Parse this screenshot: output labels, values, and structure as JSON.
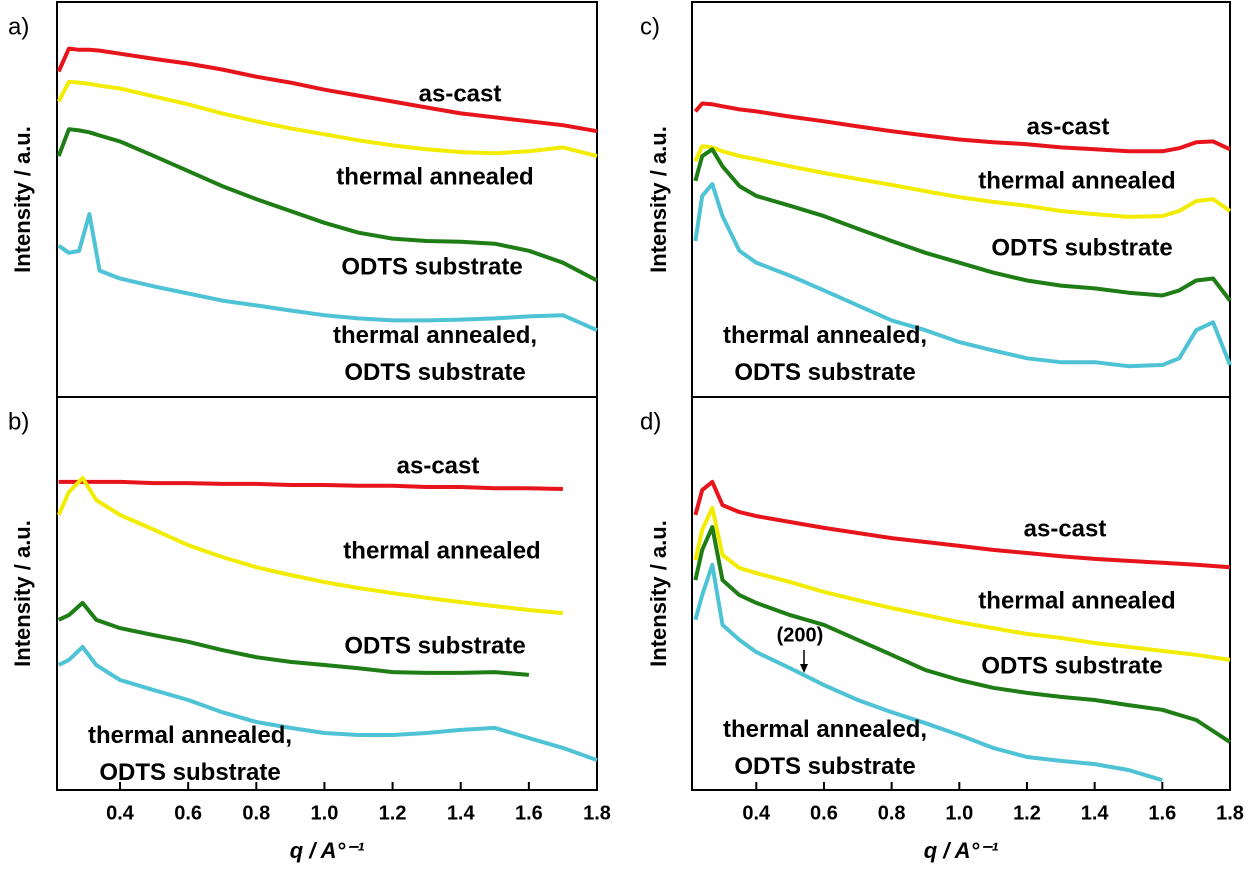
{
  "chart_data": [
    {
      "type": "line",
      "panel_label": "a)",
      "y_label": "Intensity / a.u.",
      "x": [
        0.22,
        0.25,
        0.28,
        0.31,
        0.34,
        0.4,
        0.5,
        0.6,
        0.7,
        0.8,
        0.9,
        1.0,
        1.1,
        1.2,
        1.3,
        1.4,
        1.5,
        1.6,
        1.7,
        1.8
      ],
      "xlim": [
        0.215,
        1.8
      ],
      "ylim": [
        0,
        100
      ],
      "series": [
        {
          "name": "as-cast",
          "color": "#e8141c",
          "values": [
            82.4,
            88.2,
            87.9,
            87.9,
            87.7,
            86.9,
            85.6,
            84.4,
            82.9,
            81.1,
            79.6,
            77.8,
            76.3,
            74.8,
            73.3,
            71.8,
            70.8,
            69.8,
            68.8,
            67.3
          ]
        },
        {
          "name": "thermal annealed",
          "color": "#f2ec00",
          "values": [
            74.8,
            79.8,
            79.6,
            79.3,
            78.8,
            78.1,
            76.1,
            74.1,
            71.8,
            69.8,
            68.0,
            66.5,
            65.0,
            63.7,
            62.7,
            62.0,
            61.7,
            62.2,
            63.2,
            61.0
          ]
        },
        {
          "name": "ODTS substrate",
          "color": "#1e7d14",
          "values": [
            61.0,
            67.8,
            67.5,
            67.0,
            66.2,
            64.7,
            61.0,
            57.2,
            53.4,
            50.1,
            47.1,
            44.1,
            41.6,
            40.1,
            39.5,
            39.3,
            38.8,
            37.0,
            34.0,
            29.5
          ]
        },
        {
          "name": "thermal annealed, ODTS substrate",
          "color": "#4ec3d6",
          "values": [
            38.3,
            36.5,
            37.0,
            46.3,
            32.0,
            30.0,
            28.0,
            26.2,
            24.4,
            23.2,
            21.9,
            20.7,
            19.9,
            19.4,
            19.4,
            19.6,
            19.9,
            20.4,
            20.7,
            16.9
          ]
        }
      ]
    },
    {
      "type": "line",
      "panel_label": "b)",
      "y_label": "Intensity / a.u.",
      "x_label": "q / A°⁻¹",
      "x": [
        0.22,
        0.25,
        0.29,
        0.33,
        0.4,
        0.5,
        0.6,
        0.7,
        0.8,
        0.9,
        1.0,
        1.1,
        1.2,
        1.3,
        1.4,
        1.5,
        1.6,
        1.7,
        1.8
      ],
      "xlim": [
        0.215,
        1.8
      ],
      "ylim": [
        0,
        100
      ],
      "xticks": [
        0.4,
        0.6,
        0.8,
        {
          "value": 1,
          "label": "1.0"
        },
        1.2,
        1.4,
        1.6,
        1.8
      ],
      "series": [
        {
          "name": "as-cast",
          "color": "#e8141c",
          "values": [
            78.4,
            78.4,
            78.4,
            78.4,
            78.4,
            78.1,
            78.1,
            77.9,
            77.9,
            77.6,
            77.6,
            77.4,
            77.4,
            77.1,
            77.1,
            76.8,
            76.8,
            76.6,
            null
          ]
        },
        {
          "name": "thermal annealed",
          "color": "#f2ec00",
          "values": [
            70.0,
            75.8,
            79.4,
            73.8,
            70.0,
            66.2,
            62.3,
            59.3,
            56.7,
            54.7,
            52.9,
            51.4,
            50.1,
            48.9,
            47.8,
            46.8,
            45.8,
            45.0,
            null
          ]
        },
        {
          "name": "ODTS substrate",
          "color": "#1e7d14",
          "values": [
            43.3,
            44.5,
            47.6,
            43.3,
            41.2,
            39.4,
            37.7,
            35.6,
            33.8,
            32.6,
            31.8,
            31.0,
            30.0,
            29.8,
            29.8,
            30.0,
            29.3,
            null,
            null
          ]
        },
        {
          "name": "thermal annealed, ODTS substrate",
          "color": "#4ec3d6",
          "values": [
            31.8,
            33.1,
            36.4,
            31.8,
            28.0,
            25.4,
            22.9,
            19.8,
            17.3,
            15.8,
            14.5,
            14.0,
            14.0,
            14.5,
            15.3,
            15.8,
            13.2,
            10.7,
            7.6
          ]
        }
      ]
    },
    {
      "type": "line",
      "panel_label": "c)",
      "y_label": "Intensity / a.u.",
      "x": [
        0.22,
        0.24,
        0.27,
        0.3,
        0.35,
        0.4,
        0.5,
        0.6,
        0.7,
        0.8,
        0.9,
        1.0,
        1.1,
        1.2,
        1.3,
        1.4,
        1.5,
        1.6,
        1.65,
        1.7,
        1.75,
        1.8
      ],
      "xlim": [
        0.21,
        1.8
      ],
      "ylim": [
        0,
        100
      ],
      "series": [
        {
          "name": "as-cast",
          "color": "#e8141c",
          "values": [
            72.3,
            74.3,
            74.1,
            73.6,
            72.8,
            72.3,
            71.0,
            69.8,
            68.5,
            67.3,
            66.2,
            65.2,
            64.5,
            64.0,
            63.2,
            62.7,
            62.2,
            62.2,
            63.0,
            64.5,
            64.7,
            62.7
          ]
        },
        {
          "name": "thermal annealed",
          "color": "#f2ec00",
          "values": [
            59.7,
            63.5,
            63.2,
            62.2,
            61.0,
            60.2,
            58.4,
            56.7,
            55.2,
            53.7,
            52.1,
            50.6,
            49.4,
            48.4,
            47.1,
            46.3,
            45.6,
            45.8,
            47.1,
            49.6,
            50.1,
            47.1
          ]
        },
        {
          "name": "ODTS substrate",
          "color": "#1e7d14",
          "values": [
            54.7,
            61.0,
            62.7,
            58.4,
            53.4,
            50.9,
            48.4,
            45.8,
            42.6,
            39.5,
            36.5,
            34.0,
            31.5,
            29.5,
            28.2,
            27.5,
            26.4,
            25.7,
            27.0,
            29.5,
            30.0,
            24.4
          ]
        },
        {
          "name": "thermal annealed, ODTS substrate",
          "color": "#4ec3d6",
          "values": [
            39.5,
            50.9,
            53.9,
            45.8,
            37.0,
            34.0,
            30.7,
            27.0,
            23.2,
            19.4,
            16.9,
            13.9,
            11.8,
            9.8,
            8.8,
            8.8,
            7.8,
            8.1,
            9.8,
            16.9,
            18.9,
            8.1
          ]
        }
      ]
    },
    {
      "type": "line",
      "panel_label": "d)",
      "y_label": "Intensity / a.u.",
      "x_label": "q / A°⁻¹",
      "x": [
        0.22,
        0.24,
        0.27,
        0.3,
        0.35,
        0.4,
        0.5,
        0.6,
        0.7,
        0.8,
        0.9,
        1.0,
        1.1,
        1.2,
        1.3,
        1.4,
        1.5,
        1.6,
        1.7,
        1.8
      ],
      "xlim": [
        0.21,
        1.8
      ],
      "ylim": [
        0,
        100
      ],
      "xticks": [
        0.4,
        0.6,
        0.8,
        {
          "value": 1,
          "label": "1.0"
        },
        1.2,
        1.4,
        1.6,
        1.8
      ],
      "annotations": [
        "(200)"
      ],
      "series": [
        {
          "name": "as-cast",
          "color": "#e8141c",
          "values": [
            70.0,
            76.3,
            78.4,
            72.5,
            70.7,
            69.7,
            68.2,
            66.7,
            65.4,
            64.1,
            63.1,
            62.1,
            61.1,
            60.3,
            59.5,
            58.8,
            58.3,
            57.8,
            57.3,
            56.7
          ]
        },
        {
          "name": "thermal annealed",
          "color": "#f2ec00",
          "values": [
            58.5,
            66.2,
            71.8,
            59.8,
            56.5,
            55.2,
            52.9,
            50.4,
            48.3,
            46.3,
            44.5,
            42.7,
            41.2,
            39.7,
            38.7,
            37.4,
            36.4,
            35.4,
            34.4,
            33.1
          ]
        },
        {
          "name": "ODTS substrate",
          "color": "#1e7d14",
          "values": [
            53.4,
            61.1,
            66.9,
            53.4,
            49.6,
            47.6,
            44.5,
            42.0,
            38.2,
            34.4,
            30.5,
            28.0,
            26.0,
            24.7,
            23.7,
            22.9,
            21.6,
            20.4,
            17.8,
            12.2
          ]
        },
        {
          "name": "thermal annealed, ODTS substrate",
          "color": "#4ec3d6",
          "values": [
            43.3,
            49.6,
            57.3,
            42.0,
            38.2,
            35.1,
            31.0,
            26.7,
            22.9,
            19.8,
            17.0,
            14.0,
            10.7,
            8.4,
            7.4,
            6.6,
            5.1,
            2.5,
            null,
            null
          ]
        }
      ]
    }
  ]
}
